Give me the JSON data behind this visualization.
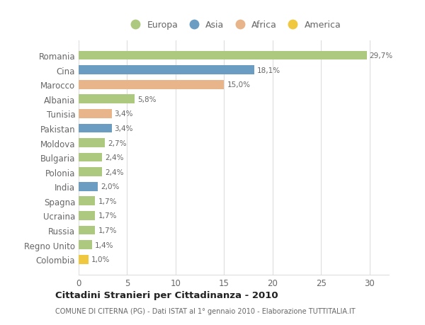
{
  "countries": [
    "Romania",
    "Cina",
    "Marocco",
    "Albania",
    "Tunisia",
    "Pakistan",
    "Moldova",
    "Bulgaria",
    "Polonia",
    "India",
    "Spagna",
    "Ucraina",
    "Russia",
    "Regno Unito",
    "Colombia"
  ],
  "values": [
    29.7,
    18.1,
    15.0,
    5.8,
    3.4,
    3.4,
    2.7,
    2.4,
    2.4,
    2.0,
    1.7,
    1.7,
    1.7,
    1.4,
    1.0
  ],
  "labels": [
    "29,7%",
    "18,1%",
    "15,0%",
    "5,8%",
    "3,4%",
    "3,4%",
    "2,7%",
    "2,4%",
    "2,4%",
    "2,0%",
    "1,7%",
    "1,7%",
    "1,7%",
    "1,4%",
    "1,0%"
  ],
  "continents": [
    "Europa",
    "Asia",
    "Africa",
    "Europa",
    "Africa",
    "Asia",
    "Europa",
    "Europa",
    "Europa",
    "Asia",
    "Europa",
    "Europa",
    "Europa",
    "Europa",
    "America"
  ],
  "colors": {
    "Europa": "#adc980",
    "Asia": "#6b9dc2",
    "Africa": "#e8b48a",
    "America": "#f0c840"
  },
  "title": "Cittadini Stranieri per Cittadinanza - 2010",
  "subtitle": "COMUNE DI CITERNA (PG) - Dati ISTAT al 1° gennaio 2010 - Elaborazione TUTTITALIA.IT",
  "xlim": [
    0,
    32
  ],
  "xticks": [
    0,
    5,
    10,
    15,
    20,
    25,
    30
  ],
  "background_color": "#ffffff",
  "grid_color": "#dddddd",
  "text_color": "#666666"
}
